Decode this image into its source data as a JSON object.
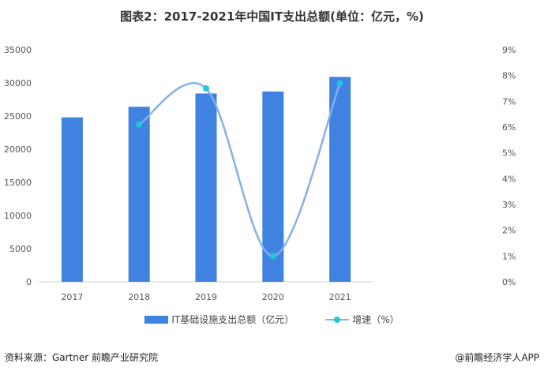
{
  "chart_data": {
    "type": "bar+line",
    "title": "图表2：2017-2021年中国IT支出总额(单位：亿元，%)",
    "categories": [
      "2017",
      "2018",
      "2019",
      "2020",
      "2021"
    ],
    "series": [
      {
        "name": "IT基础设施支出总额（亿元）",
        "type": "bar",
        "axis": "left",
        "values": [
          24800,
          26400,
          28400,
          28700,
          30900
        ],
        "color": "#3f82e0"
      },
      {
        "name": "增速（%）",
        "type": "line",
        "axis": "right",
        "values": [
          null,
          6.1,
          7.5,
          1.0,
          7.7
        ],
        "color": "#86b0ec",
        "marker_color": "#1fc8d8"
      }
    ],
    "y_left": {
      "range": [
        0,
        35000
      ],
      "ticks": [
        "0",
        "5000",
        "10000",
        "15000",
        "20000",
        "25000",
        "30000",
        "35000"
      ]
    },
    "y_right": {
      "range": [
        0,
        9
      ],
      "ticks": [
        "0%",
        "1%",
        "2%",
        "3%",
        "4%",
        "5%",
        "6%",
        "7%",
        "8%",
        "9%"
      ]
    },
    "legend_position": "bottom",
    "grid": false
  },
  "footer": {
    "source": "资料来源：Gartner 前瞻产业研究院",
    "credit": "@前瞻经济学人APP"
  }
}
